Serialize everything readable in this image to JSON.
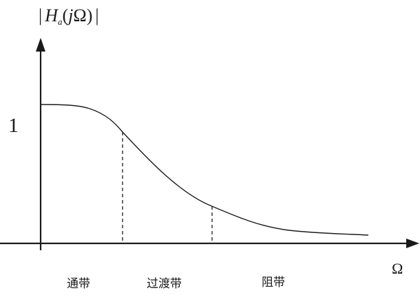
{
  "y_axis_label": {
    "bar_left": "|",
    "H": "H",
    "sub": "a",
    "paren_open": "(",
    "j": "j",
    "omega": "Ω",
    "paren_close": ")",
    "bar_right": "|"
  },
  "x_axis_label": "Ω",
  "y_tick_label": "1",
  "bands": {
    "passband": "通带",
    "transition": "过渡带",
    "stopband": "阻带"
  },
  "colors": {
    "ink": "#1a1a1a",
    "background": "#ffffff"
  }
}
